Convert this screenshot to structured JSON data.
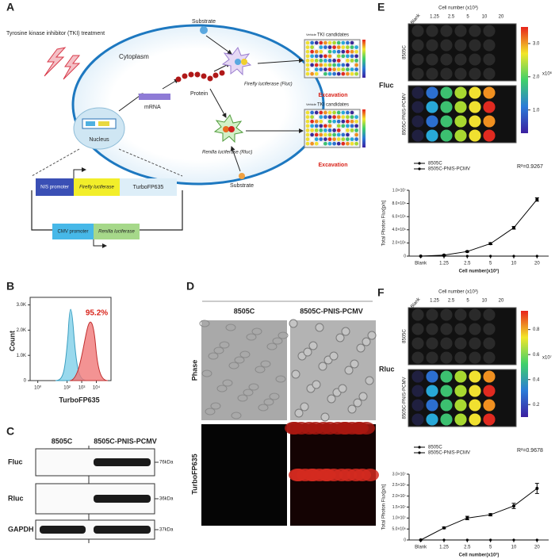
{
  "panel_a": {
    "label": "A",
    "tki_treatment": "Tyrosine kinase inhibitor (TKI) treatment",
    "cytoplasm": "Cytoplasm",
    "substrate_top": "Substrate",
    "substrate_bottom": "Substrate",
    "fluc": "Firefly luciferase (Fluc)",
    "rluc": "Renilla luciferase (Rluc)",
    "protein": "Protein",
    "mrna": "mRNA",
    "nucleus": "Nucleus",
    "plates": [
      {
        "title": "TKI candidates",
        "vehicle": "Vehicle",
        "excavation": "Excavation"
      },
      {
        "title": "TKI candidates",
        "vehicle": "Vehicle",
        "excavation": "Excavation"
      }
    ],
    "plasmid": {
      "nis_promoter": "NIS promoter",
      "firefly_luciferase": "Firefly luciferase",
      "turbofp": "TurboFP635",
      "cmv_promoter": "CMV promoter",
      "renilla_luciferase": "Renilla luciferase"
    }
  },
  "panel_b": {
    "label": "B",
    "type": "histogram",
    "y_label": "Count",
    "x_label": "TurboFP635",
    "annotation": "95.2%",
    "ylim": [
      0,
      3300
    ],
    "yticks": [
      0,
      {
        "value": 1000,
        "label": "1.0K"
      },
      {
        "value": 2000,
        "label": "2.0K"
      },
      {
        "value": 3000,
        "label": "3.0K"
      }
    ],
    "xlim": [
      0.3,
      100000
    ],
    "log_x": true,
    "xticks": [
      {
        "value": 1,
        "label": "10⁰"
      },
      {
        "value": 100,
        "label": "10²"
      },
      {
        "value": 1000,
        "label": "10³"
      },
      {
        "value": 10000,
        "label": "10⁴"
      }
    ]
  },
  "panel_c": {
    "label": "C",
    "columns": [
      "8505C",
      "8505C-PNIS-PCMV"
    ],
    "rows": [
      {
        "name": "Fluc",
        "size": "76kDa"
      },
      {
        "name": "Rluc",
        "size": "36kDa"
      },
      {
        "name": "GAPDH",
        "size": "37kDa"
      }
    ]
  },
  "panel_d": {
    "label": "D",
    "columns": [
      "8505C",
      "8505C-PNIS-PCMV"
    ],
    "rows": [
      "Phase",
      "TurboFP635"
    ]
  },
  "panel_e": {
    "label": "E",
    "image": {
      "cell_number_label": "Cell number (x10³)",
      "columns": [
        "Blank",
        "1.25",
        "2.5",
        "5",
        "10",
        "20"
      ],
      "rows": [
        "8505C",
        "8505C-PNIS-PCMV"
      ],
      "reporter": "Fluc",
      "clim": [
        0.3,
        3.5
      ],
      "colorbar_ticks": [
        {
          "value": 3,
          "label": "3.0"
        },
        {
          "value": 2,
          "label": "2.0"
        },
        {
          "value": 1,
          "label": "1.0"
        }
      ],
      "colorbar_unit": "x10⁶"
    },
    "chart": {
      "type": "line",
      "x_label": "Cell number(x10³)",
      "y_label": "Total Photon Flux[p/s]",
      "annotation": "R²=0.9267",
      "categories": [
        "Blank",
        "1.25",
        "2.5",
        "5",
        "10",
        "20"
      ],
      "series": [
        {
          "name": "8505C",
          "color": "#000000",
          "values": [
            0,
            0,
            0,
            0,
            0,
            0
          ]
        },
        {
          "name": "8505C-PNIS-PCMV",
          "color": "#000000",
          "values": [
            0,
            150000,
            700000,
            1900000,
            4300000,
            8600000
          ],
          "errors": [
            0,
            50000,
            100000,
            150000,
            200000,
            250000
          ]
        }
      ],
      "ylim": [
        0,
        10000000
      ],
      "yticks": [
        0,
        {
          "value": 2000000,
          "label": "2.0×10⁶"
        },
        {
          "value": 4000000,
          "label": "4.0×10⁶"
        },
        {
          "value": 6000000,
          "label": "6.0×10⁶"
        },
        {
          "value": 8000000,
          "label": "8.0×10⁶"
        },
        {
          "value": 10000000,
          "label": "1.0×10⁷"
        }
      ]
    }
  },
  "panel_f": {
    "label": "F",
    "image": {
      "cell_number_label": "Cell number (x10³)",
      "columns": [
        "Blank",
        "1.25",
        "2.5",
        "5",
        "10",
        "20"
      ],
      "rows": [
        "8505C",
        "8505C-PNIS-PCMV"
      ],
      "reporter": "Rluc",
      "clim": [
        0.1,
        0.95
      ],
      "colorbar_ticks": [
        {
          "value": 0.8,
          "label": "0.8"
        },
        {
          "value": 0.6,
          "label": "0.6"
        },
        {
          "value": 0.4,
          "label": "0.4"
        },
        {
          "value": 0.2,
          "label": "0.2"
        }
      ],
      "colorbar_unit": "x10⁷"
    },
    "chart": {
      "type": "line",
      "x_label": "Cell number(x10³)",
      "y_label": "Total Photon Flux[p/s]",
      "annotation": "R²=0.9678",
      "categories": [
        "Blank",
        "1.25",
        "2.5",
        "5",
        "10",
        "20"
      ],
      "series": [
        {
          "name": "8505C",
          "color": "#000000",
          "values": [
            0,
            0,
            0,
            0,
            0,
            0
          ]
        },
        {
          "name": "8505C-PNIS-PCMV",
          "color": "#000000",
          "values": [
            0,
            5500000,
            10000000,
            11500000,
            15500000,
            23500000
          ],
          "errors": [
            0,
            400000,
            800000,
            500000,
            1200000,
            2300000
          ]
        }
      ],
      "ylim": [
        0,
        30000000
      ],
      "yticks": [
        0,
        {
          "value": 5000000,
          "label": "5.0×10⁶"
        },
        {
          "value": 10000000,
          "label": "1.0×10⁷"
        },
        {
          "value": 15000000,
          "label": "1.5×10⁷"
        },
        {
          "value": 20000000,
          "label": "2.0×10⁷"
        },
        {
          "value": 25000000,
          "label": "2.5×10⁷"
        },
        {
          "value": 30000000,
          "label": "3.0×10⁷"
        }
      ]
    }
  }
}
